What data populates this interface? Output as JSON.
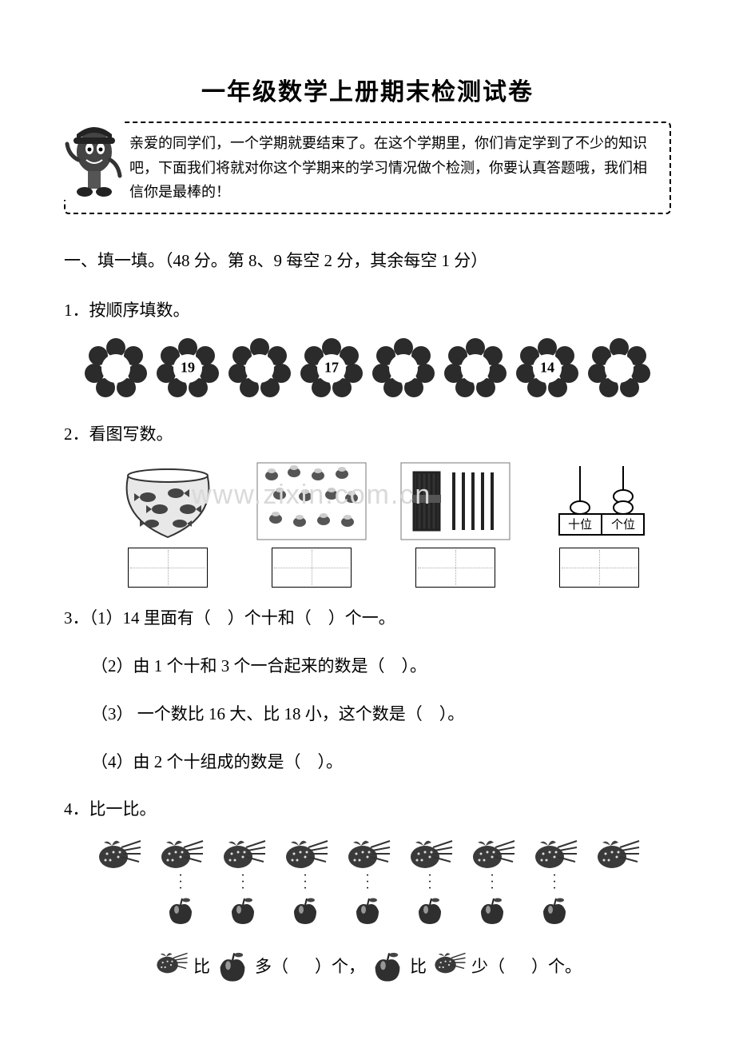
{
  "title": "一年级数学上册期末检测试卷",
  "intro": "亲爱的同学们，一个学期就要结束了。在这个学期里，你们肯定学到了不少的知识吧，下面我们将就对你这个学期来的学习情况做个检测，你要认真答题哦，我们相信你是最棒的！",
  "section1": {
    "heading": "一、填一填。（48 分。第 8、9 每空 2 分，其余每空 1 分）",
    "q1_label": "1．按顺序填数。",
    "flowers": [
      "",
      "19",
      "",
      "17",
      "",
      "",
      "14",
      ""
    ],
    "q2_label": "2．看图写数。",
    "q3": {
      "line1_a": "3．（1）14 里面有（",
      "line1_b": "）个十和（",
      "line1_c": "）个一。",
      "line2_a": "（2）由 1 个十和 3 个一合起来的数是（",
      "line2_b": "）。",
      "line3_a": "（3） 一个数比 16 大、比 18 小，这个数是（",
      "line3_b": "）。",
      "line4_a": "（4）由 2 个十组成的数是（",
      "line4_b": "）。"
    },
    "q4_label": "4．比一比。",
    "q4": {
      "strawberries": 9,
      "apples": 7,
      "dotted_pairs": 7,
      "s_a": "比",
      "s_b": "多（",
      "s_c": "）个，",
      "s_d": "比",
      "s_e": "少（",
      "s_f": "）个。"
    },
    "abacus": {
      "tens_label": "十位",
      "ones_label": "个位"
    }
  },
  "watermark": "www.zixin.com.cn",
  "colors": {
    "text": "#000000",
    "bg": "#ffffff",
    "watermark": "#d9d9d9",
    "flower_fill": "#2b2b2b",
    "flower_center": "#ffffff",
    "dash": "#000000"
  }
}
